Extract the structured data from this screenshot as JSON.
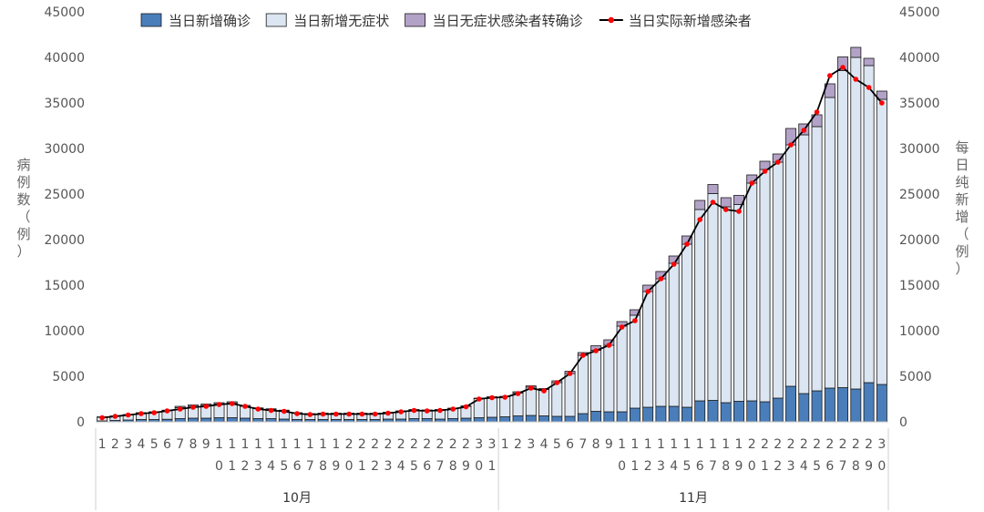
{
  "chart_data": {
    "type": "bar",
    "stacked": true,
    "yaxis_left": {
      "title_chars": [
        "病",
        "例",
        "数",
        "（",
        "例",
        "）"
      ],
      "ylim": [
        0,
        45000
      ],
      "ticks": [
        0,
        5000,
        10000,
        15000,
        20000,
        25000,
        30000,
        35000,
        40000,
        45000
      ]
    },
    "yaxis_right": {
      "title_chars": [
        "每",
        "日",
        "纯",
        "新",
        "增",
        "（",
        "例",
        "）"
      ],
      "ylim": [
        0,
        45000
      ],
      "ticks": [
        0,
        5000,
        10000,
        15000,
        20000,
        25000,
        30000,
        35000,
        40000,
        45000
      ]
    },
    "months": [
      {
        "label": "10月",
        "start": 0,
        "count": 31
      },
      {
        "label": "11月",
        "start": 31,
        "count": 30
      }
    ],
    "categories": [
      "1",
      "2",
      "3",
      "4",
      "5",
      "6",
      "7",
      "8",
      "9",
      "10",
      "11",
      "12",
      "13",
      "14",
      "15",
      "16",
      "17",
      "18",
      "19",
      "20",
      "21",
      "22",
      "23",
      "24",
      "25",
      "26",
      "27",
      "28",
      "29",
      "30",
      "31",
      "1",
      "2",
      "3",
      "4",
      "5",
      "6",
      "7",
      "8",
      "9",
      "10",
      "11",
      "12",
      "13",
      "14",
      "15",
      "16",
      "17",
      "18",
      "19",
      "20",
      "21",
      "22",
      "23",
      "24",
      "25",
      "26",
      "27",
      "28",
      "29",
      "30"
    ],
    "series": [
      {
        "name": "当日新增确诊",
        "kind": "bar",
        "color": "#4a7ebb",
        "values": [
          100,
          150,
          200,
          250,
          250,
          280,
          350,
          400,
          400,
          450,
          450,
          400,
          350,
          350,
          300,
          250,
          250,
          250,
          250,
          250,
          250,
          250,
          300,
          300,
          350,
          350,
          300,
          350,
          400,
          450,
          500,
          550,
          650,
          700,
          650,
          600,
          600,
          900,
          1150,
          1100,
          1100,
          1500,
          1600,
          1700,
          1700,
          1600,
          2300,
          2350,
          2100,
          2250,
          2300,
          2200,
          2600,
          3900,
          3100,
          3400,
          3700,
          3750,
          3600,
          4300,
          4100
        ]
      },
      {
        "name": "当日新增无症状",
        "kind": "bar",
        "color": "#dce6f2",
        "values": [
          400,
          450,
          550,
          700,
          800,
          950,
          1200,
          1300,
          1400,
          1500,
          1600,
          1300,
          1100,
          1000,
          900,
          700,
          600,
          650,
          650,
          650,
          650,
          650,
          700,
          850,
          950,
          900,
          1000,
          1100,
          1300,
          2100,
          2200,
          2200,
          2500,
          3100,
          2900,
          3700,
          4700,
          6400,
          6700,
          7300,
          9400,
          10200,
          12700,
          14000,
          15700,
          17900,
          21000,
          22700,
          21500,
          21600,
          23900,
          25500,
          25900,
          26500,
          28400,
          29000,
          31900,
          34800,
          36400,
          34800,
          31300
        ]
      },
      {
        "name": "当日无症状感染者转确诊",
        "kind": "bar",
        "color": "#b3a2c7",
        "values": [
          50,
          50,
          50,
          50,
          50,
          50,
          150,
          150,
          150,
          150,
          150,
          100,
          80,
          80,
          80,
          50,
          50,
          50,
          50,
          50,
          50,
          50,
          50,
          50,
          50,
          50,
          50,
          50,
          50,
          50,
          50,
          50,
          150,
          150,
          100,
          200,
          250,
          300,
          500,
          600,
          500,
          600,
          700,
          800,
          800,
          900,
          1000,
          1000,
          1000,
          1000,
          900,
          900,
          900,
          1800,
          1200,
          1300,
          1500,
          1500,
          1100,
          800,
          900
        ]
      },
      {
        "name": "当日实际新增感染者",
        "kind": "line",
        "color": "#000000",
        "marker_color": "#ff0000",
        "values": [
          450,
          600,
          750,
          900,
          1000,
          1200,
          1400,
          1600,
          1700,
          1900,
          2000,
          1700,
          1400,
          1250,
          1150,
          900,
          800,
          850,
          850,
          850,
          850,
          850,
          950,
          1100,
          1250,
          1200,
          1250,
          1400,
          1650,
          2500,
          2650,
          2700,
          3100,
          3700,
          3400,
          4300,
          5300,
          7300,
          7800,
          8400,
          10400,
          11100,
          14300,
          15700,
          17300,
          19500,
          22200,
          24100,
          23300,
          23100,
          26200,
          27500,
          28500,
          30400,
          32000,
          34000,
          38000,
          38900,
          37600,
          36700,
          35000
        ]
      }
    ],
    "legend_position": "top",
    "grid": false
  }
}
